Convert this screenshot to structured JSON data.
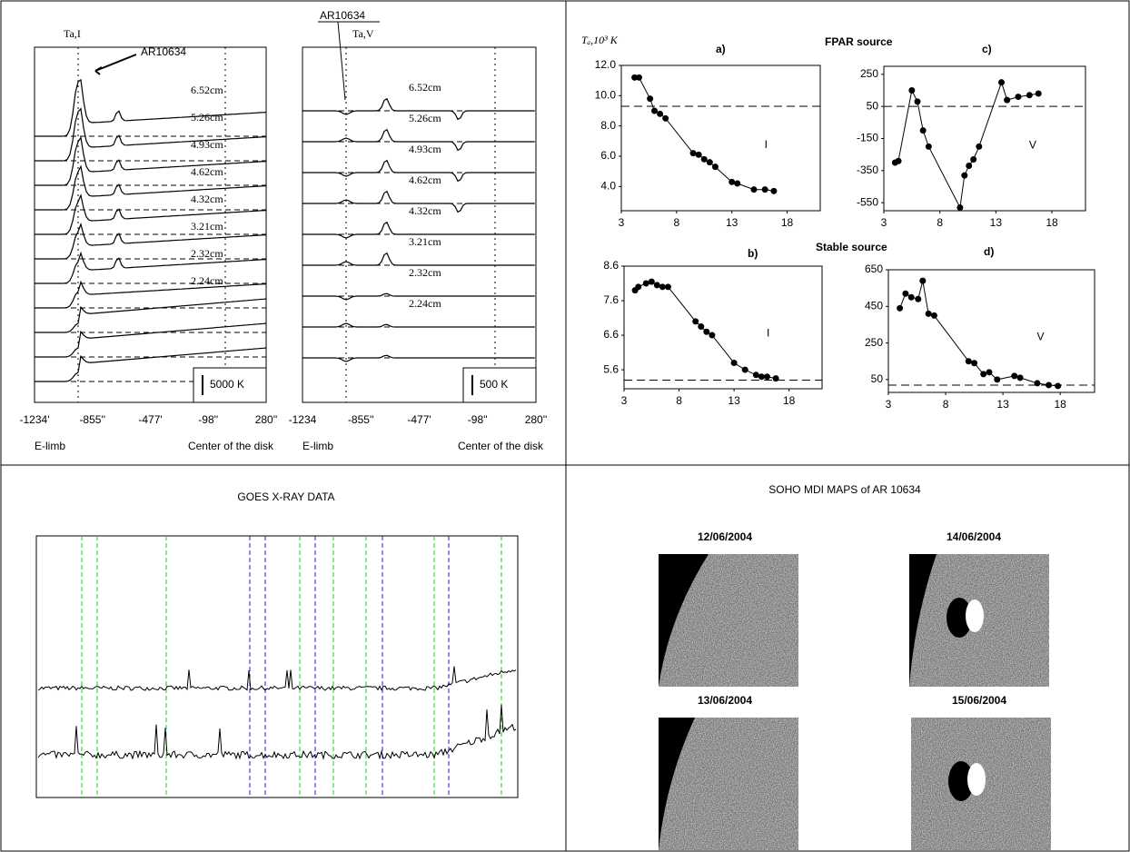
{
  "spectra": [
    {
      "label": "Ta,I",
      "region": "AR10634",
      "wavelengths": [
        "6.52cm",
        "5.26cm",
        "4.93cm",
        "4.62cm",
        "4.32cm",
        "3.21cm",
        "2.32cm",
        "2.24cm"
      ],
      "scale": "5000 K",
      "xlabels": [
        "-1234'",
        "-855''",
        "-477'",
        "-98''",
        "280''"
      ],
      "limb": "E-limb",
      "center": "Center of the disk"
    },
    {
      "label": "Ta,V",
      "region": "AR10634",
      "wavelengths": [
        "6.52cm",
        "5.26cm",
        "4.93cm",
        "4.62cm",
        "4.32cm",
        "3.21cm",
        "2.32cm",
        "2.24cm"
      ],
      "scale": "500 K",
      "xlabels": [
        "-1234",
        "-855''",
        "-477'",
        "-98''",
        "280''"
      ],
      "limb": "E-limb",
      "center": "Center of the disk"
    }
  ],
  "headings": {
    "unit": "Tₐ,10³ K",
    "fpar": "FPAR source",
    "stable": "Stable source"
  },
  "chart_data": [
    {
      "type": "line",
      "label": "a)",
      "component": "I",
      "color": "#000",
      "x": [
        4.2,
        4.6,
        5.6,
        6,
        6.5,
        7,
        9.5,
        10,
        10.5,
        11,
        11.5,
        13,
        13.5,
        15,
        16,
        16.8
      ],
      "values": [
        11.2,
        11.2,
        9.8,
        9,
        8.8,
        8.5,
        6.2,
        6.1,
        5.8,
        5.6,
        5.3,
        4.3,
        4.2,
        3.8,
        3.8,
        3.7
      ],
      "reference": 9.3,
      "xlim": [
        3,
        21
      ],
      "ylim": [
        2.4,
        12
      ],
      "xticks": [
        3,
        8,
        13,
        18
      ],
      "yticks": [
        {
          "value": 4,
          "label": "4.0"
        },
        {
          "value": 6,
          "label": "6.0"
        },
        {
          "value": 8,
          "label": "8.0"
        },
        {
          "value": 10,
          "label": "10.0"
        },
        {
          "value": 12,
          "label": "12.0"
        }
      ]
    },
    {
      "type": "line",
      "label": "b)",
      "component": "I",
      "color": "#000",
      "x": [
        4,
        4.3,
        5,
        5.5,
        6,
        6.5,
        7,
        9.5,
        10,
        10.5,
        11,
        13,
        14,
        15,
        15.5,
        16,
        16.8
      ],
      "values": [
        7.9,
        8.0,
        8.1,
        8.15,
        8.05,
        8.0,
        8.0,
        7.0,
        6.85,
        6.7,
        6.6,
        5.8,
        5.6,
        5.45,
        5.4,
        5.4,
        5.35
      ],
      "reference": 5.3,
      "xlim": [
        3,
        21
      ],
      "ylim": [
        5.05,
        8.6
      ],
      "xticks": [
        3,
        8,
        13,
        18
      ],
      "yticks": [
        5.6,
        6.6,
        7.6,
        8.6
      ]
    },
    {
      "type": "line",
      "label": "c)",
      "component": "V",
      "color": "#000",
      "x": [
        4,
        4.3,
        5.5,
        6,
        6.5,
        7,
        9.8,
        10.2,
        10.6,
        11,
        11.5,
        13.5,
        14,
        15,
        16,
        16.8
      ],
      "values": [
        -300,
        -290,
        150,
        80,
        -100,
        -200,
        -580,
        -380,
        -320,
        -280,
        -200,
        200,
        90,
        110,
        120,
        130
      ],
      "reference": 50,
      "xlim": [
        3,
        21
      ],
      "ylim": [
        -600,
        300
      ],
      "xticks": [
        3,
        8,
        13,
        18
      ],
      "yticks": [
        -550,
        -350,
        -150,
        50,
        250
      ]
    },
    {
      "type": "line",
      "label": "d)",
      "component": "V",
      "color": "#000",
      "x": [
        4,
        4.5,
        5,
        5.6,
        6,
        6.5,
        7,
        10,
        10.5,
        11.3,
        11.8,
        12.5,
        14,
        14.5,
        16,
        17,
        17.8
      ],
      "values": [
        440,
        520,
        500,
        490,
        590,
        410,
        400,
        150,
        140,
        80,
        90,
        50,
        70,
        60,
        30,
        20,
        15
      ],
      "reference": 20,
      "xlim": [
        3,
        21
      ],
      "ylim": [
        -20,
        650
      ],
      "xticks": [
        3,
        8,
        13,
        18
      ],
      "yticks": [
        50,
        250,
        450,
        650
      ]
    }
  ],
  "goes": {
    "title": "GOES X-RAY DATA"
  },
  "soho": {
    "title": "SOHO MDI MAPS of AR 10634",
    "dates": [
      "12/06/2004",
      "14/06/2004",
      "13/06/2004",
      "15/06/2004"
    ]
  }
}
